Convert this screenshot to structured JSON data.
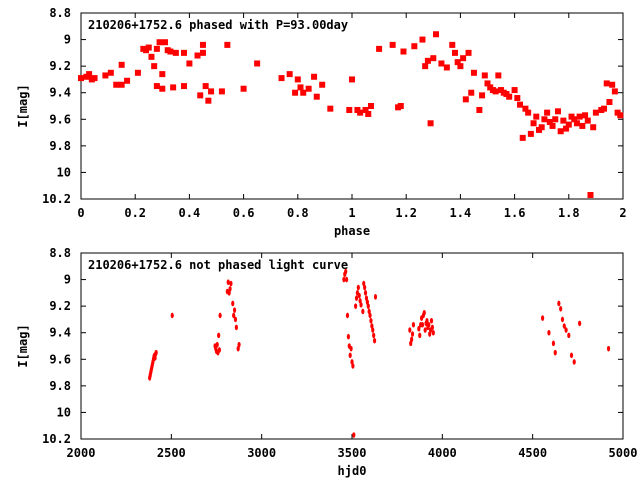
{
  "chart_data": [
    {
      "type": "scatter",
      "title": "210206+1752.6 phased with P=93.00day",
      "xlabel": "phase",
      "ylabel": "I[mag]",
      "xlim": [
        0,
        2
      ],
      "ylim": [
        8.8,
        10.2
      ],
      "y_inverted": true,
      "xticks": [
        "0",
        "0.2",
        "0.4",
        "0.6",
        "0.8",
        "1",
        "1.2",
        "1.4",
        "1.6",
        "1.8",
        "2"
      ],
      "yticks": [
        "8.8",
        "9",
        "9.2",
        "9.4",
        "9.6",
        "9.8",
        "10",
        "10.2"
      ],
      "marker_color": "#ff0000",
      "series": [
        {
          "x": [
            0.0,
            0.02,
            0.03,
            0.04,
            0.05,
            0.09,
            0.11,
            0.13,
            0.15,
            0.15,
            0.17,
            0.21,
            0.23,
            0.24,
            0.25,
            0.26,
            0.27,
            0.28,
            0.28,
            0.29,
            0.3,
            0.3,
            0.31,
            0.32,
            0.33,
            0.34,
            0.35,
            0.38,
            0.38,
            0.4,
            0.43,
            0.44,
            0.45,
            0.45,
            0.46,
            0.47,
            0.48,
            0.52,
            0.54,
            0.6,
            0.65,
            0.74,
            0.77,
            0.79,
            0.8,
            0.81,
            0.82,
            0.84,
            0.86,
            0.87,
            0.89,
            0.92,
            0.99,
            1.0,
            1.02,
            1.03,
            1.05,
            1.06,
            1.07,
            1.1,
            1.15,
            1.17,
            1.18,
            1.19,
            1.23,
            1.26,
            1.27,
            1.28,
            1.29,
            1.3,
            1.31,
            1.33,
            1.35,
            1.37,
            1.38,
            1.39,
            1.4,
            1.41,
            1.42,
            1.43,
            1.44,
            1.45,
            1.47,
            1.48,
            1.49,
            1.5,
            1.51,
            1.52,
            1.53,
            1.54,
            1.55,
            1.56,
            1.57,
            1.58,
            1.6,
            1.61,
            1.62,
            1.63,
            1.64,
            1.65,
            1.66,
            1.67,
            1.68,
            1.69,
            1.7,
            1.71,
            1.72,
            1.73,
            1.74,
            1.75,
            1.76,
            1.77,
            1.78,
            1.79,
            1.8,
            1.81,
            1.82,
            1.83,
            1.84,
            1.85,
            1.86,
            1.87,
            1.88,
            1.89,
            1.9,
            1.92,
            1.93,
            1.94,
            1.95,
            1.96,
            1.97,
            1.98,
            1.99
          ],
          "y": [
            9.29,
            9.28,
            9.26,
            9.3,
            9.29,
            9.27,
            9.25,
            9.34,
            9.19,
            9.34,
            9.31,
            9.25,
            9.07,
            9.08,
            9.06,
            9.13,
            9.2,
            9.35,
            9.07,
            9.02,
            9.37,
            9.26,
            9.02,
            9.08,
            9.09,
            9.36,
            9.1,
            9.35,
            9.1,
            9.18,
            9.12,
            9.42,
            9.04,
            9.1,
            9.35,
            9.46,
            9.39,
            9.39,
            9.04,
            9.37,
            9.18,
            9.29,
            9.26,
            9.4,
            9.3,
            9.36,
            9.4,
            9.37,
            9.28,
            9.43,
            9.34,
            9.52,
            9.53,
            9.3,
            9.53,
            9.55,
            9.53,
            9.56,
            9.5,
            9.07,
            9.04,
            9.51,
            9.5,
            9.09,
            9.05,
            9.0,
            9.2,
            9.16,
            9.63,
            9.14,
            8.96,
            9.18,
            9.21,
            9.04,
            9.1,
            9.17,
            9.2,
            9.14,
            9.45,
            9.1,
            9.4,
            9.25,
            9.53,
            9.42,
            9.27,
            9.33,
            9.36,
            9.38,
            9.39,
            9.27,
            9.38,
            9.4,
            9.41,
            9.43,
            9.38,
            9.44,
            9.49,
            9.74,
            9.52,
            9.55,
            9.71,
            9.63,
            9.58,
            9.68,
            9.66,
            9.6,
            9.55,
            9.62,
            9.65,
            9.6,
            9.54,
            9.69,
            9.61,
            9.67,
            9.64,
            9.58,
            9.6,
            9.63,
            9.58,
            9.65,
            9.57,
            9.61,
            10.17,
            9.66,
            9.55,
            9.53,
            9.52,
            9.33,
            9.47,
            9.34,
            9.39,
            9.55,
            9.57
          ]
        }
      ]
    },
    {
      "type": "scatter",
      "title": "210206+1752.6 not phased light curve",
      "xlabel": "hjd0",
      "ylabel": "I[mag]",
      "xlim": [
        2000,
        5000
      ],
      "ylim": [
        8.8,
        10.2
      ],
      "y_inverted": true,
      "xticks": [
        "2000",
        "2500",
        "3000",
        "3500",
        "4000",
        "4500",
        "5000"
      ],
      "yticks": [
        "8.8",
        "9",
        "9.2",
        "9.4",
        "9.6",
        "9.8",
        "10",
        "10.2"
      ],
      "marker_color": "#ff0000",
      "series": [
        {
          "x": [
            2380,
            2383,
            2386,
            2389,
            2392,
            2395,
            2398,
            2401,
            2404,
            2407,
            2410,
            2413,
            2416,
            2505,
            2742,
            2746,
            2750,
            2754,
            2758,
            2762,
            2766,
            2770,
            2810,
            2815,
            2820,
            2825,
            2830,
            2840,
            2845,
            2850,
            2855,
            2860,
            2870,
            2875,
            3455,
            3460,
            3465,
            3470,
            3475,
            3480,
            3485,
            3490,
            3495,
            3500,
            3505,
            3510,
            3520,
            3525,
            3530,
            3535,
            3540,
            3545,
            3550,
            3560,
            3565,
            3570,
            3575,
            3580,
            3585,
            3590,
            3595,
            3600,
            3605,
            3610,
            3615,
            3620,
            3625,
            3630,
            3820,
            3825,
            3830,
            3835,
            3840,
            3870,
            3875,
            3880,
            3885,
            3890,
            3895,
            3900,
            3905,
            3910,
            3915,
            3920,
            3925,
            3930,
            3935,
            3940,
            3945,
            3950,
            4555,
            4590,
            4615,
            4625,
            4645,
            4655,
            4665,
            4675,
            4685,
            4700,
            4715,
            4730,
            4760,
            4920
          ],
          "y": [
            9.74,
            9.72,
            9.7,
            9.68,
            9.66,
            9.64,
            9.62,
            9.6,
            9.58,
            9.57,
            9.59,
            9.56,
            9.55,
            9.27,
            9.5,
            9.52,
            9.54,
            9.49,
            9.55,
            9.42,
            9.53,
            9.27,
            9.09,
            9.02,
            9.1,
            9.07,
            9.03,
            9.18,
            9.27,
            9.23,
            9.3,
            9.36,
            9.52,
            9.49,
            9.0,
            8.96,
            8.94,
            9.0,
            9.27,
            9.43,
            9.5,
            9.57,
            9.52,
            9.62,
            9.65,
            10.17,
            9.2,
            9.14,
            9.1,
            9.06,
            9.12,
            9.16,
            9.19,
            9.24,
            9.03,
            9.06,
            9.1,
            9.14,
            9.17,
            9.2,
            9.24,
            9.27,
            9.31,
            9.35,
            9.38,
            9.42,
            9.46,
            9.13,
            9.38,
            9.48,
            9.45,
            9.41,
            9.34,
            9.37,
            9.42,
            9.34,
            9.29,
            9.34,
            9.27,
            9.25,
            9.38,
            9.33,
            9.31,
            9.36,
            9.34,
            9.41,
            9.38,
            9.31,
            9.36,
            9.4,
            9.29,
            9.4,
            9.48,
            9.55,
            9.18,
            9.22,
            9.3,
            9.35,
            9.38,
            9.42,
            9.57,
            9.62,
            9.33,
            9.52
          ]
        }
      ]
    }
  ]
}
